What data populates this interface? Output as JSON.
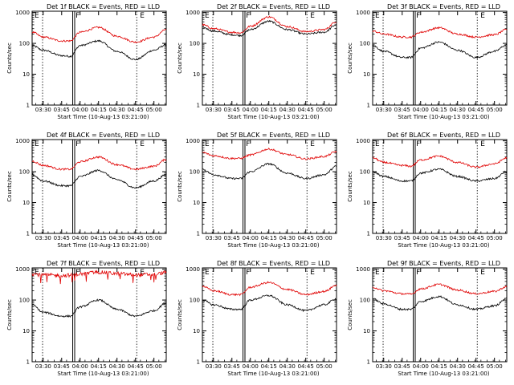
{
  "layout_meta": {
    "xlabel_template": "Start Time (10-Aug-13 03:21:00)",
    "ylabel": "Counts/sec",
    "x_ticks": [
      "03:30",
      "03:45",
      "04:00",
      "04:15",
      "04:30",
      "04:45",
      "05:00"
    ],
    "y_ticks": [
      "1",
      "10",
      "100",
      "1000"
    ],
    "markers": [
      "E",
      "F",
      "E"
    ]
  },
  "colors": {
    "events": "#000000",
    "lld": "#e00000",
    "axis": "#000000"
  },
  "chart_data": [
    {
      "type": "line",
      "title": "Det 1f BLACK = Events, RED = LLD",
      "xlabel": "Start Time (10-Aug-13 03:21:00)",
      "ylabel": "Counts/sec",
      "yscale": "log",
      "ylim": [
        1,
        1100
      ],
      "x": [
        "03:21",
        "03:30",
        "03:45",
        "03:52",
        "04:00",
        "04:15",
        "04:30",
        "04:45",
        "05:00",
        "05:10"
      ],
      "series": [
        {
          "name": "BLACK = Events",
          "values": [
            85,
            60,
            40,
            38,
            85,
            120,
            55,
            30,
            60,
            90
          ]
        },
        {
          "name": "RED = LLD",
          "values": [
            230,
            160,
            120,
            120,
            230,
            330,
            170,
            110,
            160,
            280
          ]
        }
      ]
    },
    {
      "type": "line",
      "title": "Det 2f BLACK = Events, RED = LLD",
      "xlabel": "Start Time (10-Aug-13 03:21:00)",
      "ylabel": "Counts/sec",
      "yscale": "log",
      "ylim": [
        1,
        1100
      ],
      "x": [
        "03:21",
        "03:30",
        "03:45",
        "03:52",
        "04:00",
        "04:15",
        "04:30",
        "04:45",
        "05:00",
        "05:10"
      ],
      "series": [
        {
          "name": "BLACK = Events",
          "values": [
            330,
            250,
            190,
            180,
            280,
            520,
            280,
            200,
            230,
            400
          ]
        },
        {
          "name": "RED = LLD",
          "values": [
            400,
            300,
            230,
            220,
            360,
            720,
            350,
            240,
            280,
            500
          ]
        }
      ]
    },
    {
      "type": "line",
      "title": "Det 3f BLACK = Events, RED = LLD",
      "xlabel": "Start Time (10-Aug-13 03:21:00)",
      "ylabel": "Counts/sec",
      "yscale": "log",
      "ylim": [
        1,
        1100
      ],
      "x": [
        "03:21",
        "03:30",
        "03:45",
        "03:52",
        "04:00",
        "04:15",
        "04:30",
        "04:45",
        "05:00",
        "05:10"
      ],
      "series": [
        {
          "name": "BLACK = Events",
          "values": [
            85,
            55,
            35,
            35,
            70,
            110,
            60,
            35,
            55,
            90
          ]
        },
        {
          "name": "RED = LLD",
          "values": [
            250,
            200,
            160,
            160,
            230,
            320,
            200,
            160,
            190,
            280
          ]
        }
      ]
    },
    {
      "type": "line",
      "title": "Det 4f BLACK = Events, RED = LLD",
      "xlabel": "Start Time (10-Aug-13 03:21:00)",
      "ylabel": "Counts/sec",
      "yscale": "log",
      "ylim": [
        1,
        1100
      ],
      "x": [
        "03:21",
        "03:30",
        "03:45",
        "03:52",
        "04:00",
        "04:15",
        "04:30",
        "04:45",
        "05:00",
        "05:10"
      ],
      "series": [
        {
          "name": "BLACK = Events",
          "values": [
            80,
            50,
            35,
            35,
            70,
            110,
            55,
            30,
            50,
            80
          ]
        },
        {
          "name": "RED = LLD",
          "values": [
            220,
            160,
            120,
            120,
            210,
            300,
            170,
            120,
            150,
            250
          ]
        }
      ]
    },
    {
      "type": "line",
      "title": "Det 5f BLACK = Events, RED = LLD",
      "xlabel": "Start Time (10-Aug-13 03:21:00)",
      "ylabel": "Counts/sec",
      "yscale": "log",
      "ylim": [
        1,
        1100
      ],
      "x": [
        "03:21",
        "03:30",
        "03:45",
        "03:52",
        "04:00",
        "04:15",
        "04:30",
        "04:45",
        "05:00",
        "05:10"
      ],
      "series": [
        {
          "name": "BLACK = Events",
          "values": [
            120,
            80,
            60,
            60,
            100,
            180,
            90,
            60,
            80,
            150
          ]
        },
        {
          "name": "RED = LLD",
          "values": [
            420,
            330,
            270,
            270,
            350,
            540,
            360,
            260,
            310,
            450
          ]
        }
      ]
    },
    {
      "type": "line",
      "title": "Det 6f BLACK = Events, RED = LLD",
      "xlabel": "Start Time (10-Aug-13 03:21:00)",
      "ylabel": "Counts/sec",
      "yscale": "log",
      "ylim": [
        1,
        1100
      ],
      "x": [
        "03:21",
        "03:30",
        "03:45",
        "03:52",
        "04:00",
        "04:15",
        "04:30",
        "04:45",
        "05:00",
        "05:10"
      ],
      "series": [
        {
          "name": "BLACK = Events",
          "values": [
            100,
            70,
            50,
            50,
            90,
            120,
            70,
            50,
            60,
            100
          ]
        },
        {
          "name": "RED = LLD",
          "values": [
            280,
            200,
            160,
            150,
            240,
            320,
            200,
            140,
            180,
            280
          ]
        }
      ]
    },
    {
      "type": "line",
      "title": "Det 7f BLACK = Events, RED = LLD",
      "xlabel": "Start Time (10-Aug-13 03:21:00)",
      "ylabel": "Counts/sec",
      "yscale": "log",
      "ylim": [
        1,
        1100
      ],
      "x": [
        "03:21",
        "03:30",
        "03:45",
        "03:52",
        "04:00",
        "04:15",
        "04:30",
        "04:45",
        "05:00",
        "05:10"
      ],
      "series": [
        {
          "name": "BLACK = Events",
          "values": [
            70,
            40,
            30,
            30,
            60,
            100,
            50,
            30,
            45,
            80
          ]
        },
        {
          "name": "RED = LLD",
          "values": [
            700,
            650,
            620,
            640,
            700,
            800,
            720,
            650,
            680,
            780
          ]
        }
      ]
    },
    {
      "type": "line",
      "title": "Det 8f BLACK = Events, RED = LLD",
      "xlabel": "Start Time (10-Aug-13 03:21:00)",
      "ylabel": "Counts/sec",
      "yscale": "log",
      "ylim": [
        1,
        1100
      ],
      "x": [
        "03:21",
        "03:30",
        "03:45",
        "03:52",
        "04:00",
        "04:15",
        "04:30",
        "04:45",
        "05:00",
        "05:10"
      ],
      "series": [
        {
          "name": "BLACK = Events",
          "values": [
            100,
            70,
            50,
            50,
            100,
            140,
            70,
            45,
            70,
            110
          ]
        },
        {
          "name": "RED = LLD",
          "values": [
            280,
            200,
            150,
            150,
            260,
            370,
            220,
            150,
            190,
            300
          ]
        }
      ]
    },
    {
      "type": "line",
      "title": "Det 9f BLACK = Events, RED = LLD",
      "xlabel": "Start Time (10-Aug-13 03:21:00)",
      "ylabel": "Counts/sec",
      "yscale": "log",
      "ylim": [
        1,
        1100
      ],
      "x": [
        "03:21",
        "03:30",
        "03:45",
        "03:52",
        "04:00",
        "04:15",
        "04:30",
        "04:45",
        "05:00",
        "05:10"
      ],
      "series": [
        {
          "name": "BLACK = Events",
          "values": [
            110,
            75,
            50,
            50,
            90,
            130,
            70,
            50,
            65,
            110
          ]
        },
        {
          "name": "RED = LLD",
          "values": [
            260,
            200,
            160,
            155,
            230,
            320,
            210,
            160,
            190,
            270
          ]
        }
      ]
    }
  ]
}
